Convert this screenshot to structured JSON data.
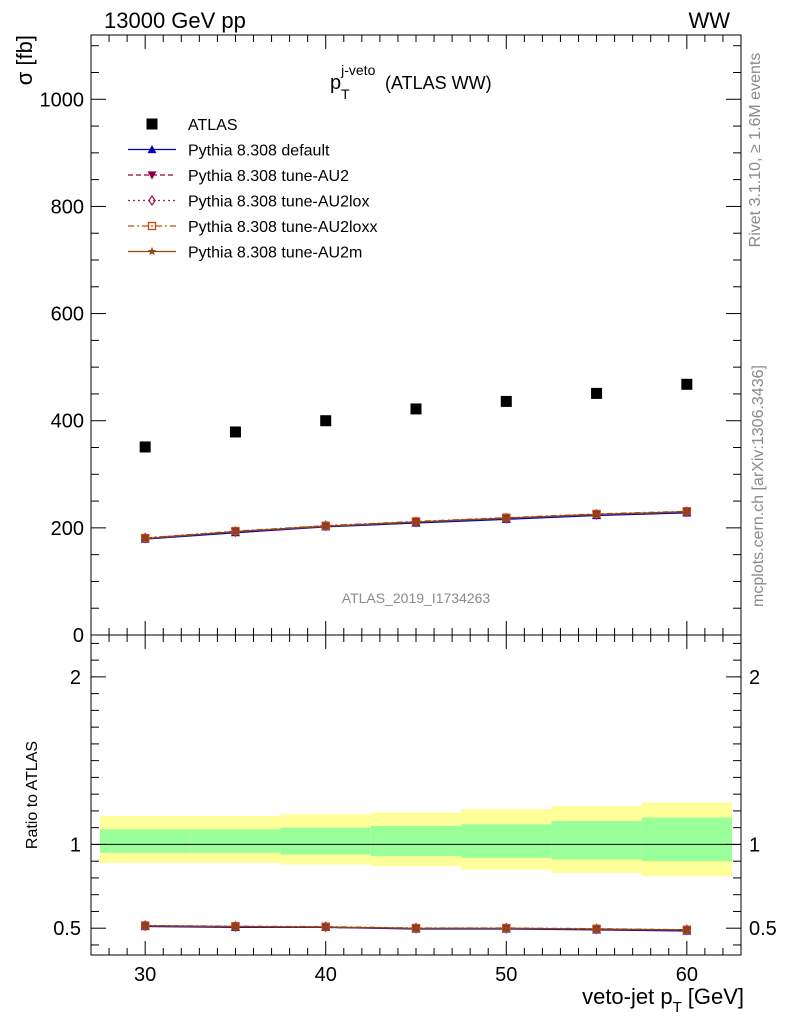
{
  "header": {
    "left": "13000 GeV pp",
    "right": "WW"
  },
  "side_texts": {
    "rivet": "Rivet 3.1.10, ≥ 1.6M events",
    "mcplots": "mcplots.cern.ch [arXiv:1306.3436]"
  },
  "chart_data": [
    {
      "type": "scatter",
      "title_main": "p",
      "title_sub": "T",
      "title_sup": "j-veto",
      "title_rest": "(ATLAS WW)",
      "ylabel": "σ [fb]",
      "xlabel_main": "veto-jet p",
      "xlabel_sub": "T",
      "xlabel_rest": "[GeV]",
      "watermark": "ATLAS_2019_I1734263",
      "xlim": [
        27,
        63
      ],
      "ylim": [
        0,
        1120
      ],
      "y_ticks": [
        0,
        200,
        400,
        600,
        800,
        1000
      ],
      "y_tick_labels": [
        "0",
        "200",
        "400",
        "600",
        "800",
        "1000"
      ],
      "x_ticks": [
        30,
        40,
        50,
        60
      ],
      "x_tick_labels": [
        "30",
        "40",
        "50",
        "60"
      ],
      "x": [
        30,
        35,
        40,
        45,
        50,
        55,
        60
      ],
      "legend_position": "top-left",
      "series": [
        {
          "name": "ATLAS",
          "color": "#000000",
          "marker": "square",
          "values": [
            351,
            379,
            400,
            422,
            436,
            451,
            468
          ]
        },
        {
          "name": "Pythia 8.308 default",
          "color": "#0000cc",
          "marker": "triangle-up",
          "dash": "",
          "values": [
            179,
            191,
            202,
            209,
            216,
            223,
            228
          ]
        },
        {
          "name": "Pythia 8.308 tune-AU2",
          "color": "#8b0045",
          "marker": "triangle-down",
          "dash": "5,3",
          "values": [
            180,
            193,
            203,
            211,
            218,
            225,
            230
          ]
        },
        {
          "name": "Pythia 8.308 tune-AU2lox",
          "color": "#a0205a",
          "marker": "diamond-open",
          "dash": "2,3",
          "values": [
            181,
            193,
            204,
            211,
            218,
            225,
            230
          ]
        },
        {
          "name": "Pythia 8.308 tune-AU2loxx",
          "color": "#c04a10",
          "marker": "square-open",
          "dash": "6,3,2,3",
          "values": [
            181,
            194,
            204,
            212,
            219,
            226,
            231
          ]
        },
        {
          "name": "Pythia 8.308 tune-AU2m",
          "color": "#8a4a10",
          "marker": "star",
          "dash": "",
          "values": [
            180,
            193,
            203,
            211,
            218,
            225,
            230
          ]
        }
      ]
    },
    {
      "type": "line",
      "ylabel": "Ratio to ATLAS",
      "xlim": [
        27,
        63
      ],
      "ylim": [
        0.34,
        2.25
      ],
      "y_ticks": [
        0.5,
        1,
        2
      ],
      "y_tick_labels": [
        "0.5",
        "1",
        "2"
      ],
      "x": [
        30,
        35,
        40,
        45,
        50,
        55,
        60
      ],
      "bands": {
        "bin_edges": [
          27.5,
          32.5,
          37.5,
          42.5,
          47.5,
          52.5,
          57.5,
          62.5
        ],
        "yellow_low": [
          0.89,
          0.89,
          0.88,
          0.87,
          0.85,
          0.83,
          0.81
        ],
        "yellow_high": [
          1.17,
          1.17,
          1.18,
          1.19,
          1.21,
          1.23,
          1.25
        ],
        "green_low": [
          0.95,
          0.95,
          0.94,
          0.93,
          0.92,
          0.91,
          0.9
        ],
        "green_high": [
          1.09,
          1.09,
          1.1,
          1.11,
          1.12,
          1.14,
          1.16
        ],
        "yellow_color": "#ffff99",
        "green_color": "#99ff99"
      },
      "reference_line": 1,
      "series": [
        {
          "name": "Pythia 8.308 default",
          "color": "#0000cc",
          "marker": "triangle-up",
          "dash": "",
          "values": [
            0.51,
            0.505,
            0.505,
            0.495,
            0.495,
            0.49,
            0.483
          ]
        },
        {
          "name": "Pythia 8.308 tune-AU2",
          "color": "#8b0045",
          "marker": "triangle-down",
          "dash": "5,3",
          "values": [
            0.513,
            0.508,
            0.505,
            0.498,
            0.498,
            0.493,
            0.487
          ]
        },
        {
          "name": "Pythia 8.308 tune-AU2lox",
          "color": "#a0205a",
          "marker": "diamond-open",
          "dash": "2,3",
          "values": [
            0.515,
            0.51,
            0.508,
            0.5,
            0.5,
            0.495,
            0.49
          ]
        },
        {
          "name": "Pythia 8.308 tune-AU2loxx",
          "color": "#c04a10",
          "marker": "square-open",
          "dash": "6,3,2,3",
          "values": [
            0.516,
            0.512,
            0.509,
            0.501,
            0.501,
            0.497,
            0.491
          ]
        },
        {
          "name": "Pythia 8.308 tune-AU2m",
          "color": "#8a4a10",
          "marker": "star",
          "dash": "",
          "values": [
            0.514,
            0.51,
            0.507,
            0.499,
            0.499,
            0.495,
            0.489
          ]
        }
      ]
    }
  ]
}
